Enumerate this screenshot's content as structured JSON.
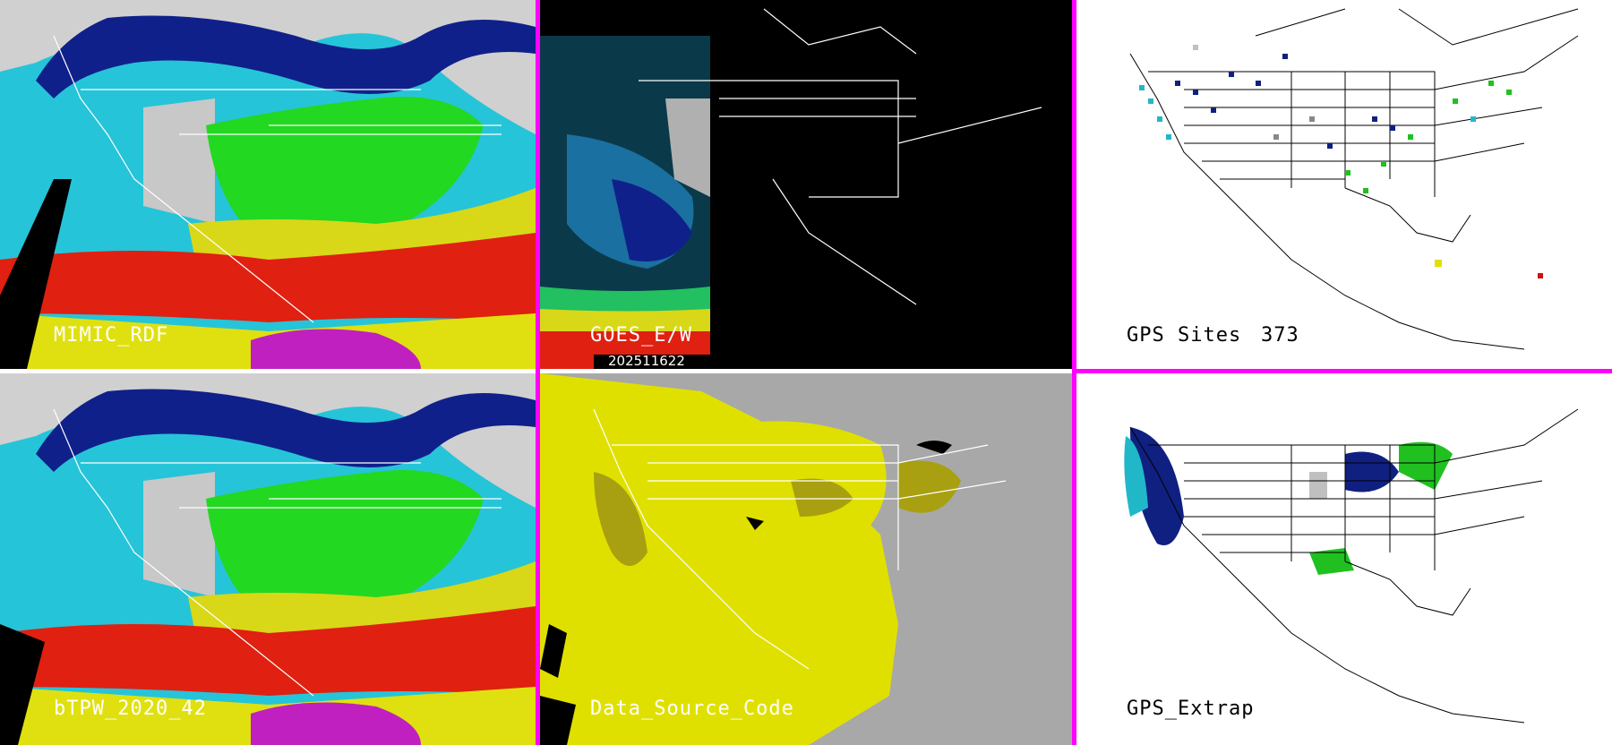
{
  "colors": {
    "separator": "#ff00ff",
    "tpw_ramp": [
      "#d8d8d8",
      "#8a8a8a",
      "#0a1a80",
      "#1a58c8",
      "#26c4d8",
      "#1ee020",
      "#8ad010",
      "#d8d818",
      "#e02010",
      "#c020c0"
    ],
    "source_code": [
      "#a8a8a8",
      "#e0e000",
      "#a8a010",
      "#000000"
    ],
    "gps_sites": [
      "#102080",
      "#20b8c8",
      "#20c020",
      "#888888",
      "#c0c0c0",
      "#e0e000",
      "#d01010"
    ]
  },
  "panels": {
    "top_left": {
      "label": "MIMIC_RDF",
      "kind": "tpw"
    },
    "top_middle": {
      "label": "GOES_E/W",
      "kind": "goes",
      "datetime": "202511622"
    },
    "top_right": {
      "label": "GPS Sites",
      "count": "373",
      "kind": "gps_sites"
    },
    "bottom_left": {
      "label": "bTPW_2020_42",
      "kind": "tpw"
    },
    "bottom_middle": {
      "label": "Data_Source_Code",
      "kind": "source_code"
    },
    "bottom_right": {
      "label": "GPS_Extrap",
      "kind": "gps_extrap"
    }
  }
}
